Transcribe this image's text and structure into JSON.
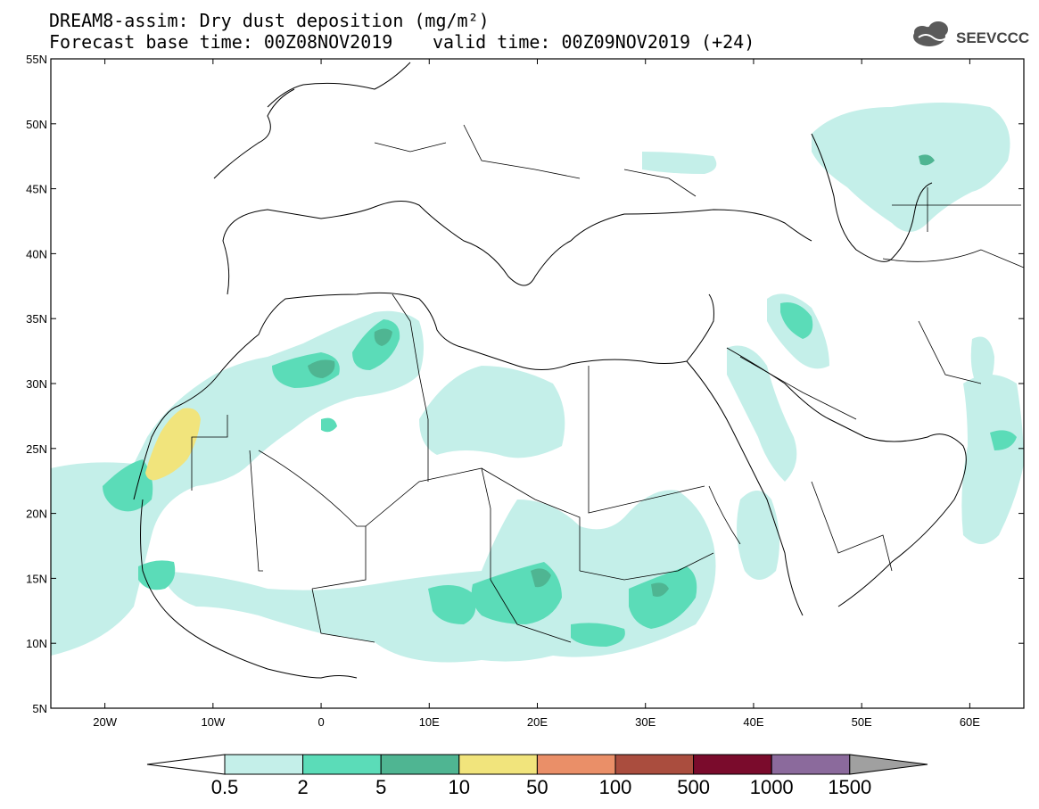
{
  "title": {
    "line1": "DREAM8-assim: Dry dust deposition (mg/m²)",
    "line2_base": "Forecast base time: 00Z08NOV2019",
    "line2_valid": "valid time: 00Z09NOV2019 (+24)"
  },
  "logo": {
    "text": "SEEVCCC",
    "icon": "cloud-icon"
  },
  "map": {
    "lon_range": [
      -25,
      65
    ],
    "lat_range": [
      5,
      55
    ],
    "lat_ticks": [
      {
        "value": 55,
        "label": "55N"
      },
      {
        "value": 50,
        "label": "50N"
      },
      {
        "value": 45,
        "label": "45N"
      },
      {
        "value": 40,
        "label": "40N"
      },
      {
        "value": 35,
        "label": "35N"
      },
      {
        "value": 30,
        "label": "30N"
      },
      {
        "value": 25,
        "label": "25N"
      },
      {
        "value": 20,
        "label": "20N"
      },
      {
        "value": 15,
        "label": "15N"
      },
      {
        "value": 10,
        "label": "10N"
      },
      {
        "value": 5,
        "label": "5N"
      }
    ],
    "lon_ticks": [
      {
        "value": -20,
        "label": "20W"
      },
      {
        "value": -10,
        "label": "10W"
      },
      {
        "value": 0,
        "label": "0"
      },
      {
        "value": 10,
        "label": "10E"
      },
      {
        "value": 20,
        "label": "20E"
      },
      {
        "value": 30,
        "label": "30E"
      },
      {
        "value": 40,
        "label": "40E"
      },
      {
        "value": 50,
        "label": "50E"
      },
      {
        "value": 60,
        "label": "60E"
      }
    ]
  },
  "legend": {
    "colors": [
      "#c4efe9",
      "#5bdcb8",
      "#4fb592",
      "#f1e47c",
      "#ea8f68",
      "#aa4d3e",
      "#7a0b2c",
      "#8b6a9c",
      "#a0a0a0"
    ],
    "tick_labels": [
      "0.5",
      "2",
      "5",
      "10",
      "50",
      "100",
      "500",
      "1000",
      "1500"
    ]
  }
}
